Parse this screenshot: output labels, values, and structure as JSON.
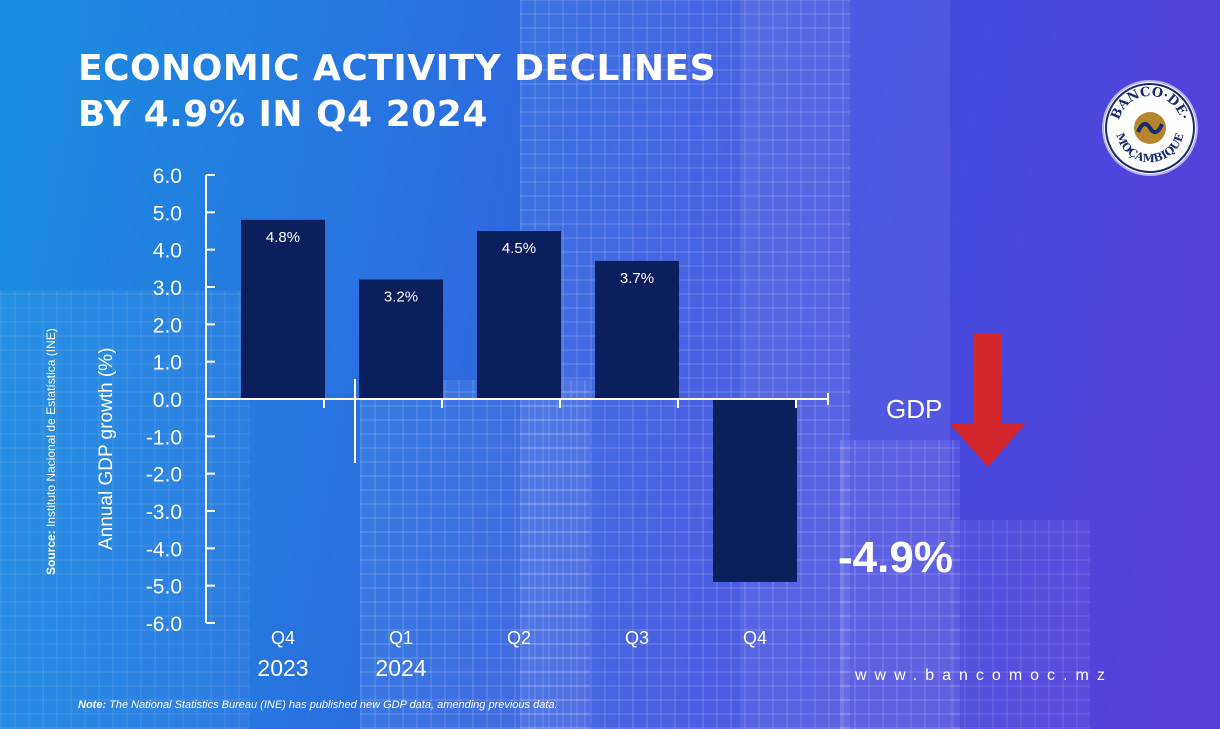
{
  "headline": {
    "line1": "ECONOMIC ACTIVITY DECLINES",
    "line2": "BY 4.9% IN Q4 2024"
  },
  "source": {
    "label": "Source:",
    "text": " Instituto Nacional de Estatística (INE)"
  },
  "note": {
    "label": "Note:",
    "text": " The National Statistics Bureau (INE) has published new GDP data, amending previous data."
  },
  "website": "www.bancomoc.mz",
  "logo": {
    "text": "BANCO · DE · MOÇAMBIQUE"
  },
  "callout": {
    "label": "GDP",
    "value": "-4.9%",
    "arrow_color": "#d3272c"
  },
  "colors": {
    "bar": "#0b1f5c",
    "axis": "#ffffff",
    "text": "#ffffff"
  },
  "chart_data": {
    "type": "bar",
    "categories": [
      "Q4",
      "Q1",
      "Q2",
      "Q3",
      "Q4"
    ],
    "year_labels": [
      {
        "label": "2023",
        "category_index": 0
      },
      {
        "label": "2024",
        "category_index": 1
      }
    ],
    "values": [
      4.8,
      3.2,
      4.5,
      3.7,
      -4.9
    ],
    "data_labels": [
      "4.8%",
      "3.2%",
      "4.5%",
      "3.7%",
      ""
    ],
    "ylabel": "Annual GDP growth (%)",
    "ylim": [
      -6.0,
      6.0
    ],
    "yticks": [
      "6.0",
      "5.0",
      "4.0",
      "3.0",
      "2.0",
      "1.0",
      "0.0",
      "-1.0",
      "-2.0",
      "-3.0",
      "-4.0",
      "-5.0",
      "-6.0"
    ],
    "grid": false
  }
}
